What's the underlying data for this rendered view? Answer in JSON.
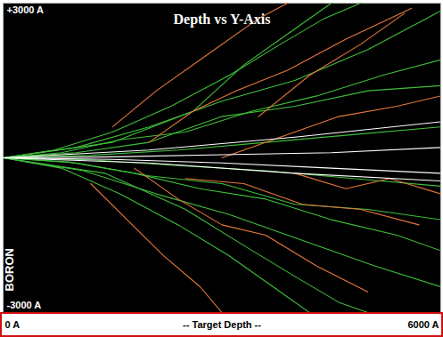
{
  "chart_data": {
    "type": "line",
    "title": "Depth vs Y-Axis",
    "x_label": "-- Target Depth --",
    "y_label": "BORON",
    "xlim": [
      0,
      6000
    ],
    "ylim": [
      -3000,
      3000
    ],
    "xticks": [
      {
        "value": 0,
        "label": "0 A"
      },
      {
        "value": 6000,
        "label": "6000 A"
      }
    ],
    "yticks": [
      {
        "value": 3000,
        "label": "+3000 A"
      },
      {
        "value": -3000,
        "label": "-3000 A"
      }
    ],
    "grid": false,
    "series": [
      {
        "color": "#3fbf3a",
        "x": [
          0,
          800,
          1600,
          2500,
          3400,
          4300,
          5200,
          6000
        ],
        "values": [
          0,
          100,
          350,
          500,
          900,
          1200,
          1600,
          1900
        ]
      },
      {
        "color": "#3fbf3a",
        "x": [
          0,
          900,
          1800,
          2700,
          3600,
          4500,
          5400,
          6000
        ],
        "values": [
          0,
          -80,
          -300,
          -600,
          -800,
          -1200,
          -1500,
          -1800
        ]
      },
      {
        "color": "#3fbf3a",
        "x": [
          0,
          1000,
          2000,
          3000,
          4000,
          5000,
          5800,
          6000
        ],
        "values": [
          0,
          200,
          600,
          1100,
          1500,
          2100,
          2700,
          2850
        ]
      },
      {
        "color": "#3fbf3a",
        "x": [
          0,
          1100,
          2100,
          3100,
          4100,
          5100,
          6000
        ],
        "values": [
          0,
          -250,
          -700,
          -1100,
          -1600,
          -2100,
          -2500
        ]
      },
      {
        "color": "#3fbf3a",
        "x": [
          0,
          1200,
          2400,
          3600,
          4800,
          6000
        ],
        "values": [
          0,
          50,
          150,
          300,
          450,
          600
        ]
      },
      {
        "color": "#3fbf3a",
        "x": [
          0,
          1200,
          2400,
          3600,
          4800,
          6000
        ],
        "values": [
          0,
          -40,
          -150,
          -250,
          -400,
          -550
        ]
      },
      {
        "color": "#3fbf3a",
        "x": [
          0,
          700,
          1500,
          2300,
          3100,
          3800,
          4400,
          4900
        ],
        "values": [
          0,
          150,
          500,
          1000,
          1600,
          2200,
          2700,
          3000
        ]
      },
      {
        "color": "#3fbf3a",
        "x": [
          0,
          800,
          1600,
          2400,
          3100,
          3700,
          4200
        ],
        "values": [
          0,
          -200,
          -700,
          -1300,
          -1900,
          -2500,
          -3000
        ]
      },
      {
        "color": "#3fbf3a",
        "x": [
          0,
          1000,
          2000,
          3000,
          4000,
          5000,
          6000
        ],
        "values": [
          0,
          100,
          300,
          800,
          1000,
          1300,
          1400
        ]
      },
      {
        "color": "#3fbf3a",
        "x": [
          0,
          1000,
          2000,
          3000,
          4000,
          5000,
          6000
        ],
        "values": [
          0,
          -100,
          -350,
          -500,
          -900,
          -1000,
          -1200
        ]
      },
      {
        "color": "#3fbf3a",
        "x": [
          0,
          1500,
          2600,
          3300,
          3900,
          4500
        ],
        "values": [
          0,
          300,
          900,
          1800,
          2400,
          3000
        ]
      },
      {
        "color": "#3fbf3a",
        "x": [
          0,
          1400,
          2500,
          3300,
          4000,
          4600,
          5000
        ],
        "values": [
          0,
          -300,
          -1000,
          -1700,
          -2300,
          -2800,
          -3000
        ]
      },
      {
        "color": "#e8793a",
        "x": [
          2000,
          2600,
          3200,
          3900,
          4700,
          5600
        ],
        "values": [
          300,
          900,
          1300,
          1700,
          2300,
          2900
        ]
      },
      {
        "color": "#e8793a",
        "x": [
          1800,
          2400,
          3000,
          3600,
          4300,
          5000
        ],
        "values": [
          -200,
          -800,
          -1300,
          -1500,
          -2100,
          -2600
        ]
      },
      {
        "color": "#e8793a",
        "x": [
          3000,
          3800,
          4600,
          5400,
          6000
        ],
        "values": [
          0,
          400,
          800,
          1000,
          1200
        ]
      },
      {
        "color": "#e8793a",
        "x": [
          2500,
          3300,
          4100,
          4900,
          5700
        ],
        "values": [
          -400,
          -500,
          -900,
          -1000,
          -1300
        ]
      },
      {
        "color": "#e8793a",
        "x": [
          1500,
          2100,
          2800,
          3500,
          3900
        ],
        "values": [
          600,
          1300,
          2000,
          2700,
          3000
        ]
      },
      {
        "color": "#e8793a",
        "x": [
          1200,
          1700,
          2200,
          2700,
          3000
        ],
        "values": [
          -500,
          -1200,
          -1900,
          -2500,
          -3000
        ]
      },
      {
        "color": "#e8793a",
        "x": [
          3500,
          4200,
          4900,
          5500
        ],
        "values": [
          800,
          1600,
          2200,
          2800
        ]
      },
      {
        "color": "#e8793a",
        "x": [
          4000,
          4700,
          5300,
          6000
        ],
        "values": [
          -300,
          -600,
          -400,
          -700
        ]
      },
      {
        "color": "#ffffff",
        "x": [
          0,
          1500,
          3000,
          4500,
          6000
        ],
        "values": [
          0,
          20,
          60,
          100,
          200
        ]
      },
      {
        "color": "#ffffff",
        "x": [
          0,
          1500,
          3000,
          4500,
          6000
        ],
        "values": [
          0,
          -30,
          -100,
          -200,
          -300
        ]
      },
      {
        "color": "#ffffff",
        "x": [
          0,
          2000,
          4000,
          6000
        ],
        "values": [
          0,
          150,
          400,
          700
        ]
      },
      {
        "color": "#ffffff",
        "x": [
          0,
          2000,
          4000,
          6000
        ],
        "values": [
          0,
          -100,
          -300,
          -450
        ]
      }
    ]
  }
}
